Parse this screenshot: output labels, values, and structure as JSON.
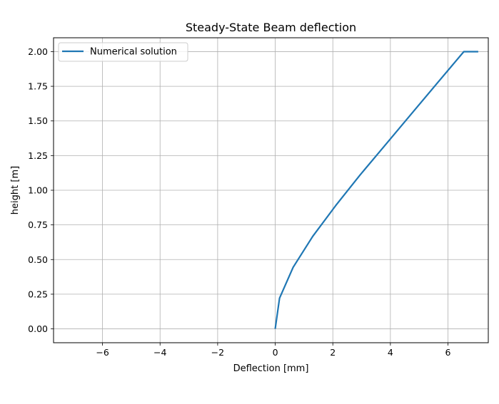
{
  "chart_data": {
    "type": "line",
    "title": "Steady-State Beam deflection",
    "xlabel": "Deflection [mm]",
    "ylabel": "height [m]",
    "xlim": [
      -7.7,
      7.4
    ],
    "ylim": [
      -0.1,
      2.1
    ],
    "xticks": [
      -6,
      -4,
      -2,
      0,
      2,
      4,
      6
    ],
    "xtick_labels": [
      "−6",
      "−4",
      "−2",
      "0",
      "2",
      "4",
      "6"
    ],
    "yticks": [
      0.0,
      0.25,
      0.5,
      0.75,
      1.0,
      1.25,
      1.5,
      1.75,
      2.0
    ],
    "ytick_labels": [
      "0.00",
      "0.25",
      "0.50",
      "0.75",
      "1.00",
      "1.25",
      "1.50",
      "1.75",
      "2.00"
    ],
    "grid": true,
    "legend_position": "top-left",
    "series": [
      {
        "name": "Numerical solution",
        "color": "#1f77b4",
        "x": [
          0.0,
          0.15,
          0.62,
          1.3,
          2.1,
          2.95,
          3.85,
          4.75,
          5.65,
          6.55,
          7.05
        ],
        "y": [
          0.0,
          0.222,
          0.444,
          0.667,
          0.889,
          1.111,
          1.333,
          1.556,
          1.778,
          2.0,
          2.0
        ]
      }
    ]
  }
}
